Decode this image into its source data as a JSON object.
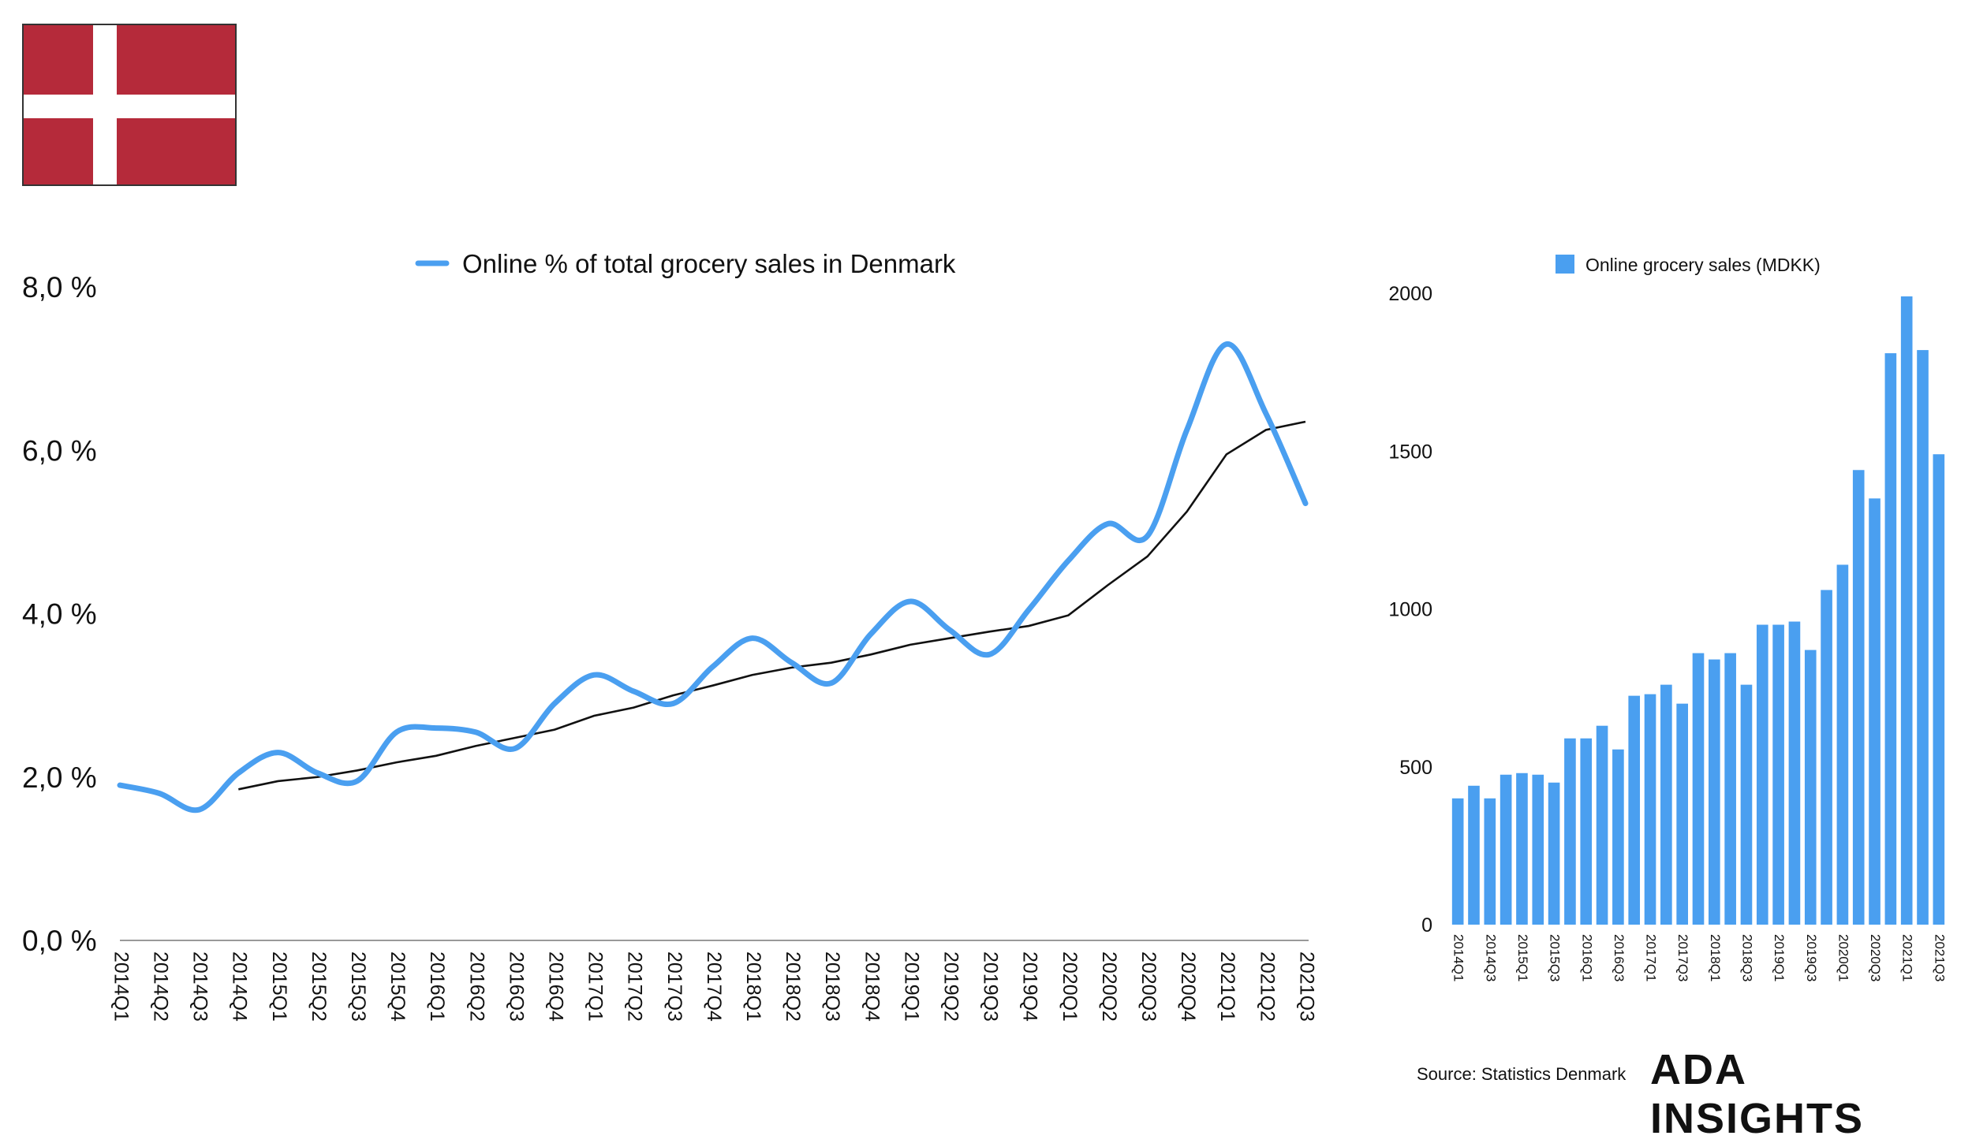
{
  "colors": {
    "accent": "#4a9ff0",
    "trend": "#111111",
    "flag_red": "#b52a3a"
  },
  "flag": {
    "name": "denmark-flag"
  },
  "source": "Source: Statistics Denmark",
  "brand": "ADA INSIGHTS",
  "chart_data": [
    {
      "type": "line",
      "title": "",
      "legend": [
        "Online % of total grocery sales in Denmark"
      ],
      "legend_position": "top-center",
      "x": [
        "2014Q1",
        "2014Q2",
        "2014Q3",
        "2014Q4",
        "2015Q1",
        "2015Q2",
        "2015Q3",
        "2015Q4",
        "2016Q1",
        "2016Q2",
        "2016Q3",
        "2016Q4",
        "2017Q1",
        "2017Q2",
        "2017Q3",
        "2017Q4",
        "2018Q1",
        "2018Q2",
        "2018Q3",
        "2018Q4",
        "2019Q1",
        "2019Q2",
        "2019Q3",
        "2019Q4",
        "2020Q1",
        "2020Q2",
        "2020Q3",
        "2020Q4",
        "2021Q1",
        "2021Q2",
        "2021Q3"
      ],
      "yticks": [
        "0,0 %",
        "2,0 %",
        "4,0 %",
        "6,0 %",
        "8,0 %"
      ],
      "ylim": [
        0,
        8
      ],
      "grid": false,
      "series": [
        {
          "name": "Online % of total grocery sales in Denmark",
          "values": [
            1.9,
            1.8,
            1.6,
            2.05,
            2.3,
            2.05,
            1.95,
            2.55,
            2.6,
            2.55,
            2.35,
            2.9,
            3.25,
            3.05,
            2.9,
            3.35,
            3.7,
            3.4,
            3.15,
            3.75,
            4.15,
            3.8,
            3.5,
            4.05,
            4.65,
            5.1,
            4.95,
            6.25,
            7.3,
            6.45,
            5.35
          ]
        },
        {
          "name": "",
          "values": [
            null,
            null,
            null,
            1.85,
            1.95,
            2.0,
            2.08,
            2.18,
            2.26,
            2.38,
            2.48,
            2.58,
            2.75,
            2.85,
            3.0,
            3.12,
            3.25,
            3.34,
            3.4,
            3.5,
            3.62,
            3.7,
            3.78,
            3.85,
            3.98,
            4.35,
            4.7,
            5.25,
            5.95,
            6.25,
            6.35
          ]
        }
      ]
    },
    {
      "type": "bar",
      "title": "",
      "legend": [
        "Online grocery sales (MDKK)"
      ],
      "legend_position": "top-center",
      "categories": [
        "2014Q1",
        "2014Q2",
        "2014Q3",
        "2014Q4",
        "2015Q1",
        "2015Q2",
        "2015Q3",
        "2015Q4",
        "2016Q1",
        "2016Q2",
        "2016Q3",
        "2016Q4",
        "2017Q1",
        "2017Q2",
        "2017Q3",
        "2017Q4",
        "2018Q1",
        "2018Q2",
        "2018Q3",
        "2018Q4",
        "2019Q1",
        "2019Q2",
        "2019Q3",
        "2019Q4",
        "2020Q1",
        "2020Q2",
        "2020Q3",
        "2020Q4",
        "2021Q1",
        "2021Q2",
        "2021Q3"
      ],
      "xticks": [
        "2014Q1",
        "2014Q3",
        "2015Q1",
        "2015Q3",
        "2016Q1",
        "2016Q3",
        "2017Q1",
        "2017Q3",
        "2018Q1",
        "2018Q3",
        "2019Q1",
        "2019Q3",
        "2020Q1",
        "2020Q3",
        "2021Q1",
        "2021Q3"
      ],
      "yticks": [
        "0",
        "500",
        "1000",
        "1500",
        "2000"
      ],
      "ylim": [
        0,
        2000
      ],
      "grid": false,
      "series": [
        {
          "name": "Online grocery sales (MDKK)",
          "values": [
            400,
            440,
            400,
            475,
            480,
            475,
            450,
            590,
            590,
            630,
            555,
            725,
            730,
            760,
            700,
            860,
            840,
            860,
            760,
            950,
            950,
            960,
            870,
            1060,
            1140,
            1440,
            1350,
            1810,
            1990,
            1820,
            1490
          ]
        }
      ]
    }
  ]
}
